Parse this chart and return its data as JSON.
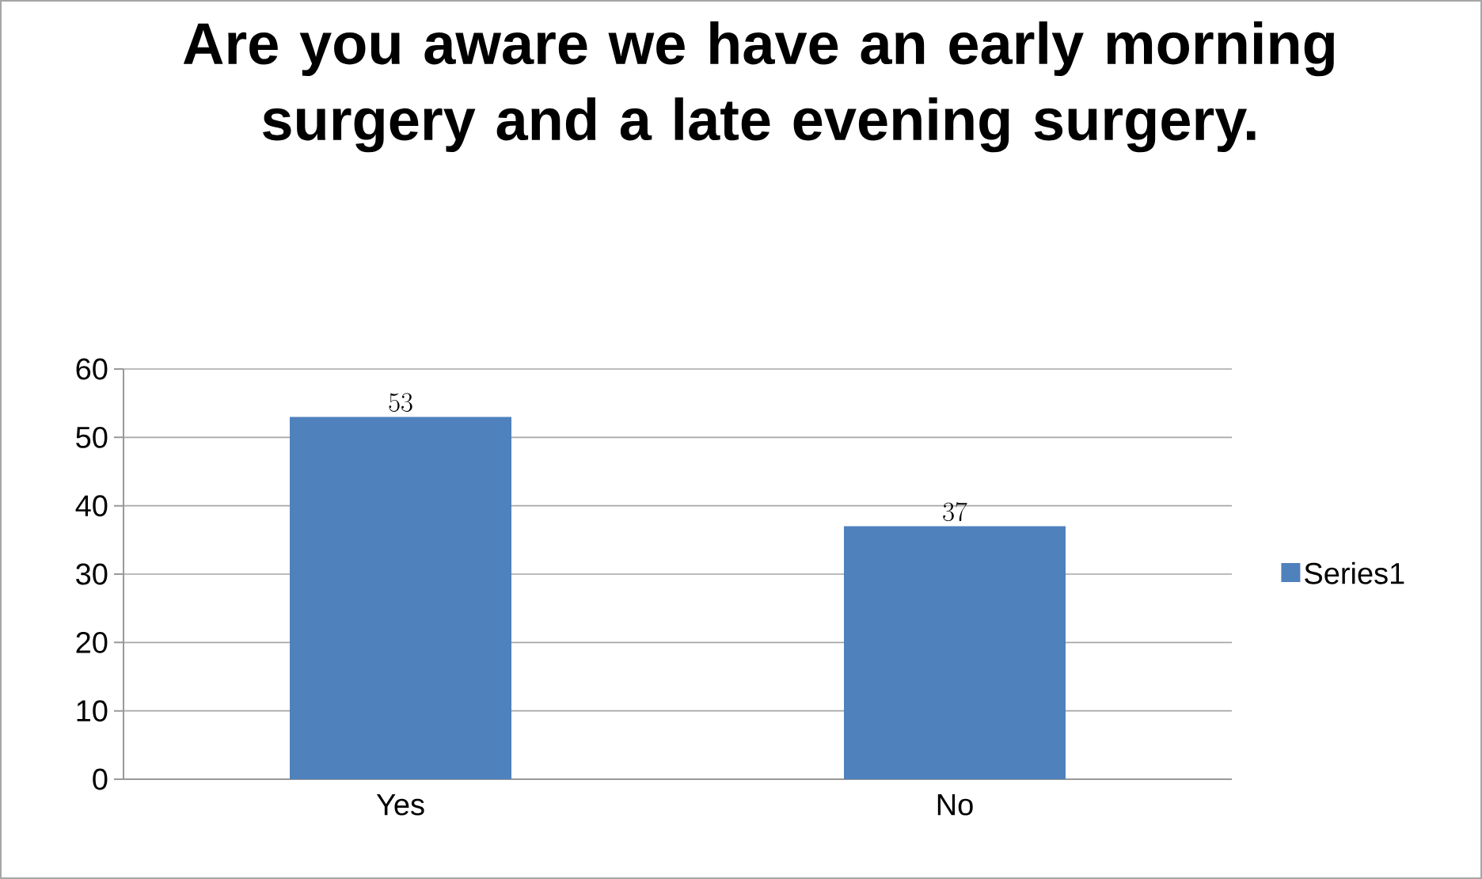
{
  "chart_data": {
    "type": "bar",
    "title": "Are you aware we have an early morning surgery and a late evening surgery.",
    "categories": [
      "Yes",
      "No"
    ],
    "series": [
      {
        "name": "Series1",
        "color": "#4f81bd",
        "values": [
          53,
          37
        ]
      }
    ],
    "ylim": [
      0,
      60
    ],
    "yticks": [
      0,
      10,
      20,
      30,
      40,
      50,
      60
    ],
    "grid": "y",
    "legend": "right",
    "data_labels": true
  }
}
